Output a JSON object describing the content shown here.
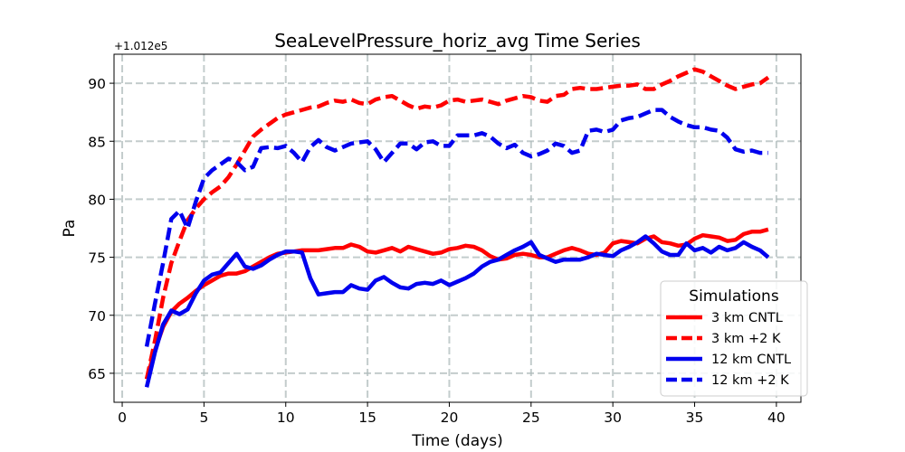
{
  "chart_data": {
    "type": "line",
    "title": "SeaLevelPressure_horiz_avg Time Series",
    "xlabel": "Time (days)",
    "ylabel": "Pa",
    "offset_text": "+1.012e5",
    "xlim": [
      -0.5,
      41.5
    ],
    "ylim": [
      62.5,
      92.5
    ],
    "xticks": [
      0,
      5,
      10,
      15,
      20,
      25,
      30,
      35,
      40
    ],
    "yticks": [
      65,
      70,
      75,
      80,
      85,
      90
    ],
    "grid": true,
    "legend": {
      "title": "Simulations",
      "placement": "lower-right"
    },
    "series": [
      {
        "name": "3 km CNTL",
        "color": "#ff0000",
        "style": "solid",
        "x": [
          1.5,
          2,
          2.5,
          3,
          3.5,
          4,
          4.5,
          5,
          5.5,
          6,
          6.5,
          7,
          7.5,
          8,
          8.5,
          9,
          9.5,
          10,
          10.5,
          11,
          11.5,
          12,
          12.5,
          13,
          13.5,
          14,
          14.5,
          15,
          15.5,
          16,
          16.5,
          17,
          17.5,
          18,
          18.5,
          19,
          19.5,
          20,
          20.5,
          21,
          21.5,
          22,
          22.5,
          23,
          23.5,
          24,
          24.5,
          25,
          25.5,
          26,
          26.5,
          27,
          27.5,
          28,
          28.5,
          29,
          29.5,
          30,
          30.5,
          31,
          31.5,
          32,
          32.5,
          33,
          33.5,
          34,
          34.5,
          35,
          35.5,
          36,
          36.5,
          37,
          37.5,
          38,
          38.5,
          39,
          39.5
        ],
        "values": [
          64.5,
          67.0,
          69.0,
          70.3,
          71.0,
          71.5,
          72.1,
          72.6,
          73.0,
          73.4,
          73.6,
          73.6,
          73.8,
          74.2,
          74.6,
          75.0,
          75.3,
          75.4,
          75.5,
          75.6,
          75.6,
          75.6,
          75.7,
          75.8,
          75.8,
          76.1,
          75.9,
          75.5,
          75.4,
          75.6,
          75.8,
          75.5,
          75.9,
          75.7,
          75.5,
          75.3,
          75.4,
          75.7,
          75.8,
          76.0,
          75.9,
          75.6,
          75.1,
          74.8,
          74.9,
          75.2,
          75.3,
          75.2,
          75.0,
          75.0,
          75.3,
          75.6,
          75.8,
          75.6,
          75.3,
          75.2,
          75.4,
          76.2,
          76.4,
          76.3,
          76.2,
          76.6,
          76.8,
          76.3,
          76.2,
          76.0,
          76.1,
          76.6,
          76.9,
          76.8,
          76.7,
          76.4,
          76.5,
          77.0,
          77.2,
          77.2,
          77.4
        ]
      },
      {
        "name": "3 km +2 K",
        "color": "#ff0000",
        "style": "dashed",
        "x": [
          1.5,
          2,
          2.5,
          3,
          3.5,
          4,
          4.5,
          5,
          5.5,
          6,
          6.5,
          7,
          7.5,
          8,
          8.5,
          9,
          9.5,
          10,
          10.5,
          11,
          11.5,
          12,
          12.5,
          13,
          13.5,
          14,
          14.5,
          15,
          15.5,
          16,
          16.5,
          17,
          17.5,
          18,
          18.5,
          19,
          19.5,
          20,
          20.5,
          21,
          21.5,
          22,
          22.5,
          23,
          23.5,
          24,
          24.5,
          25,
          25.5,
          26,
          26.5,
          27,
          27.5,
          28,
          28.5,
          29,
          29.5,
          30,
          30.5,
          31,
          31.5,
          32,
          32.5,
          33,
          33.5,
          34,
          34.5,
          35,
          35.5,
          36,
          36.5,
          37,
          37.5,
          38,
          38.5,
          39,
          39.5
        ],
        "values": [
          64.5,
          67.8,
          71.5,
          74.5,
          76.4,
          78.2,
          79.2,
          80.0,
          80.6,
          81.1,
          81.9,
          83.0,
          84.2,
          85.4,
          86.0,
          86.5,
          87.0,
          87.3,
          87.5,
          87.7,
          87.9,
          88.0,
          88.3,
          88.5,
          88.4,
          88.6,
          88.3,
          88.2,
          88.6,
          88.8,
          88.9,
          88.5,
          88.1,
          87.8,
          88.0,
          87.9,
          88.1,
          88.5,
          88.6,
          88.4,
          88.5,
          88.6,
          88.4,
          88.2,
          88.5,
          88.7,
          88.9,
          88.8,
          88.5,
          88.4,
          88.9,
          89.0,
          89.5,
          89.6,
          89.5,
          89.5,
          89.6,
          89.7,
          89.8,
          89.8,
          89.9,
          89.5,
          89.5,
          89.9,
          90.2,
          90.6,
          90.9,
          91.2,
          91.0,
          90.6,
          90.2,
          89.8,
          89.5,
          89.7,
          89.9,
          90.0,
          90.5
        ]
      },
      {
        "name": "12 km CNTL",
        "color": "#0000ee",
        "style": "solid",
        "x": [
          1.5,
          2,
          2.5,
          3,
          3.5,
          4,
          4.5,
          5,
          5.5,
          6,
          6.5,
          7,
          7.5,
          8,
          8.5,
          9,
          9.5,
          10,
          10.5,
          11,
          11.5,
          12,
          12.5,
          13,
          13.5,
          14,
          14.5,
          15,
          15.5,
          16,
          16.5,
          17,
          17.5,
          18,
          18.5,
          19,
          19.5,
          20,
          20.5,
          21,
          21.5,
          22,
          22.5,
          23,
          23.5,
          24,
          24.5,
          25,
          25.5,
          26,
          26.5,
          27,
          27.5,
          28,
          28.5,
          29,
          29.5,
          30,
          30.5,
          31,
          31.5,
          32,
          32.5,
          33,
          33.5,
          34,
          34.5,
          35,
          35.5,
          36,
          36.5,
          37,
          37.5,
          38,
          38.5,
          39,
          39.5
        ],
        "values": [
          63.8,
          66.8,
          69.2,
          70.4,
          70.1,
          70.5,
          71.9,
          73.0,
          73.5,
          73.7,
          74.5,
          75.3,
          74.2,
          74.0,
          74.3,
          74.8,
          75.2,
          75.5,
          75.5,
          75.4,
          73.2,
          71.8,
          71.9,
          72.0,
          72.0,
          72.6,
          72.3,
          72.2,
          73.0,
          73.3,
          72.8,
          72.4,
          72.3,
          72.7,
          72.8,
          72.7,
          73.0,
          72.6,
          72.9,
          73.2,
          73.6,
          74.2,
          74.6,
          74.8,
          75.2,
          75.6,
          75.9,
          76.3,
          75.2,
          74.9,
          74.6,
          74.8,
          74.8,
          74.8,
          75.0,
          75.3,
          75.2,
          75.1,
          75.6,
          75.9,
          76.3,
          76.8,
          76.2,
          75.5,
          75.2,
          75.2,
          76.2,
          75.6,
          75.8,
          75.4,
          75.9,
          75.6,
          75.8,
          76.3,
          75.9,
          75.6,
          75.0
        ]
      },
      {
        "name": "12 km +2 K",
        "color": "#0000ee",
        "style": "dashed",
        "x": [
          1.5,
          2,
          2.5,
          3,
          3.5,
          4,
          4.5,
          5,
          5.5,
          6,
          6.5,
          7,
          7.5,
          8,
          8.5,
          9,
          9.5,
          10,
          10.5,
          11,
          11.5,
          12,
          12.5,
          13,
          13.5,
          14,
          14.5,
          15,
          15.5,
          16,
          16.5,
          17,
          17.5,
          18,
          18.5,
          19,
          19.5,
          20,
          20.5,
          21,
          21.5,
          22,
          22.5,
          23,
          23.5,
          24,
          24.5,
          25,
          25.5,
          26,
          26.5,
          27,
          27.5,
          28,
          28.5,
          29,
          29.5,
          30,
          30.5,
          31,
          31.5,
          32,
          32.5,
          33,
          33.5,
          34,
          34.5,
          35,
          35.5,
          36,
          36.5,
          37,
          37.5,
          38,
          38.5,
          39,
          39.5
        ],
        "values": [
          67.3,
          71.0,
          74.5,
          78.3,
          79.0,
          77.5,
          79.8,
          81.8,
          82.5,
          83.0,
          83.5,
          83.2,
          82.5,
          82.8,
          84.4,
          84.5,
          84.4,
          84.6,
          84.0,
          83.2,
          84.5,
          85.1,
          84.5,
          84.2,
          84.5,
          84.8,
          84.9,
          85.0,
          84.3,
          83.2,
          84.0,
          84.8,
          84.8,
          84.3,
          84.9,
          85.0,
          84.6,
          84.6,
          85.5,
          85.5,
          85.5,
          85.7,
          85.4,
          84.8,
          84.4,
          84.7,
          84.0,
          83.7,
          83.9,
          84.2,
          84.8,
          84.6,
          84.0,
          84.2,
          85.9,
          86.0,
          85.8,
          86.0,
          86.8,
          87.0,
          87.1,
          87.4,
          87.7,
          87.7,
          87.1,
          86.7,
          86.4,
          86.2,
          86.2,
          86.0,
          85.9,
          85.3,
          84.3,
          84.1,
          84.2,
          84.0,
          84.0
        ]
      }
    ]
  }
}
